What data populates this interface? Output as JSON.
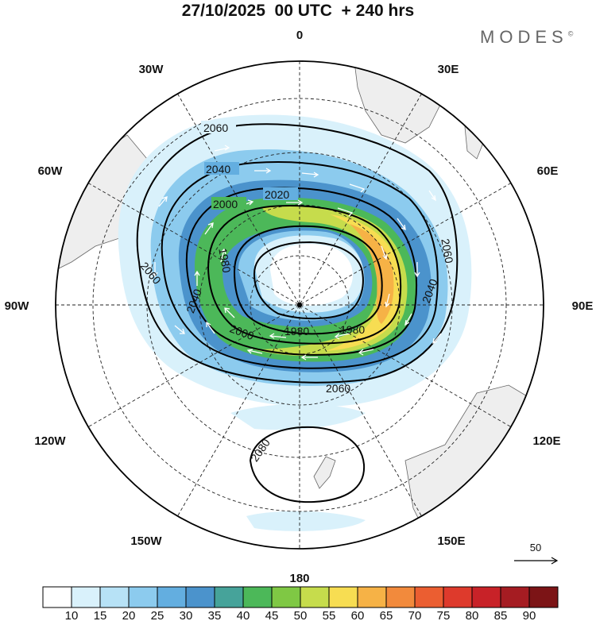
{
  "header": {
    "title": "27/10/2025  00 UTC  + 240 hrs",
    "brand": "MODES",
    "brand_mark": "©"
  },
  "map": {
    "projection": "south-polar-stereographic",
    "longitude_labels": [
      "0",
      "30E",
      "60E",
      "90E",
      "120E",
      "150E",
      "180",
      "150W",
      "120W",
      "90W",
      "60W",
      "30W"
    ],
    "contour_labels": [
      "2060",
      "2040",
      "2020",
      "2000",
      "1980",
      "2060",
      "2040",
      "2000",
      "1980",
      "1980",
      "2060",
      "2060",
      "2040",
      "2080"
    ],
    "reference_vector": {
      "label": "50"
    }
  },
  "colorbar": {
    "tick_labels": [
      "10",
      "15",
      "20",
      "25",
      "30",
      "35",
      "40",
      "45",
      "50",
      "55",
      "60",
      "65",
      "70",
      "75",
      "80",
      "85",
      "90"
    ],
    "colors": [
      "#ffffff",
      "#d9f1fb",
      "#b7e2f6",
      "#8ccbee",
      "#63aee0",
      "#4b93cc",
      "#46a39a",
      "#4cb859",
      "#7fc844",
      "#c6dc4c",
      "#f7dd52",
      "#f6b246",
      "#f28a3c",
      "#eb5e31",
      "#de3a2c",
      "#c82228",
      "#a51c22",
      "#7c1416"
    ]
  }
}
